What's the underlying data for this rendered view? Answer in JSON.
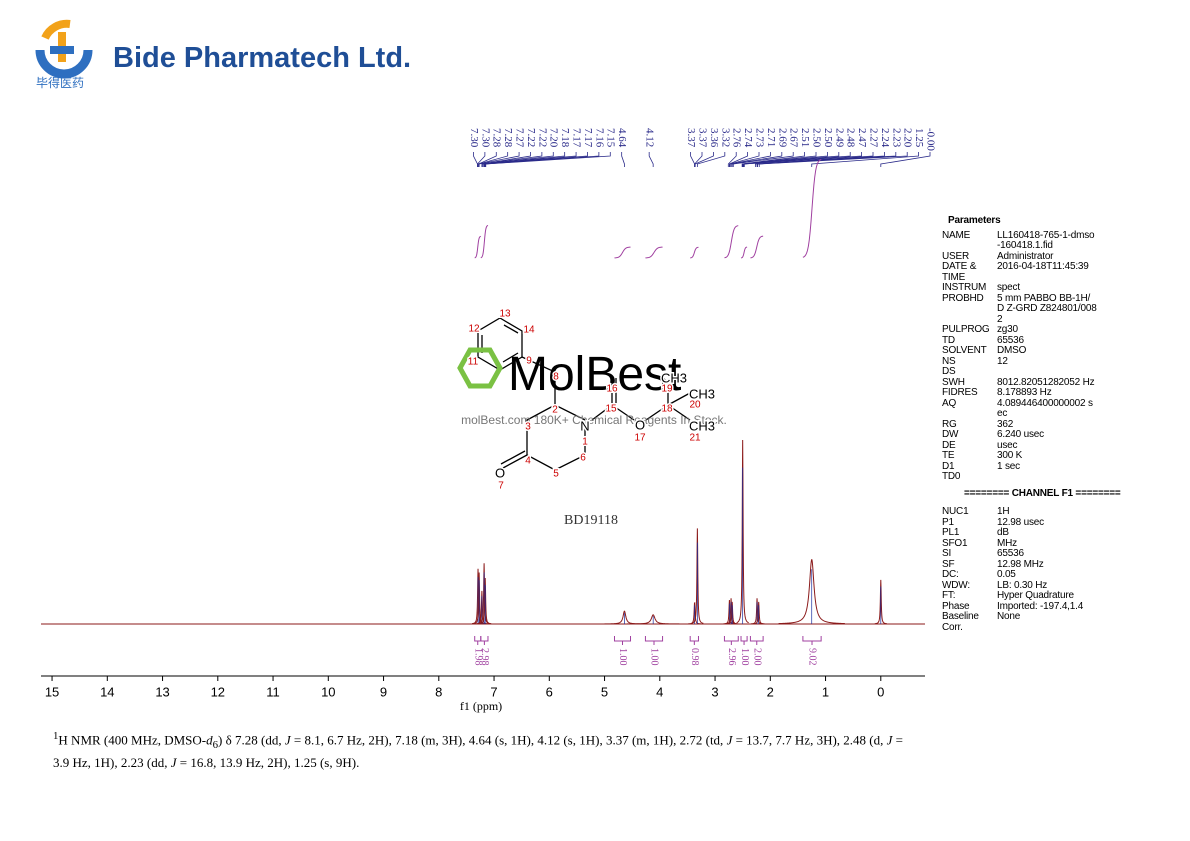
{
  "header": {
    "company": "Bide Pharmatech Ltd.",
    "chinese": "毕得医药"
  },
  "chart_data": {
    "type": "nmr",
    "xlabel": "f1 (ppm)",
    "xlim": [
      15.2,
      -0.8
    ],
    "xticks": [
      15,
      14,
      13,
      12,
      11,
      10,
      9,
      8,
      7,
      6,
      5,
      4,
      3,
      2,
      1,
      0
    ],
    "color": "#8b1a1a",
    "peak_labels": [
      {
        "value": 7.3,
        "label": "7.30"
      },
      {
        "value": 7.3,
        "label": "7.30"
      },
      {
        "value": 7.28,
        "label": "7.28"
      },
      {
        "value": 7.28,
        "label": "7.28"
      },
      {
        "value": 7.27,
        "label": "7.27"
      },
      {
        "value": 7.22,
        "label": "7.22"
      },
      {
        "value": 7.22,
        "label": "7.22"
      },
      {
        "value": 7.2,
        "label": "7.20"
      },
      {
        "value": 7.18,
        "label": "7.18"
      },
      {
        "value": 7.17,
        "label": "7.17"
      },
      {
        "value": 7.17,
        "label": "7.17"
      },
      {
        "value": 7.16,
        "label": "7.16"
      },
      {
        "value": 7.15,
        "label": "7.15"
      },
      {
        "value": 4.64,
        "label": "4.64"
      },
      {
        "value": 4.12,
        "label": "4.12"
      },
      {
        "value": 3.37,
        "label": "3.37"
      },
      {
        "value": 3.37,
        "label": "3.37"
      },
      {
        "value": 3.36,
        "label": "3.36"
      },
      {
        "value": 3.32,
        "label": "3.32"
      },
      {
        "value": 2.76,
        "label": "2.76"
      },
      {
        "value": 2.74,
        "label": "2.74"
      },
      {
        "value": 2.73,
        "label": "2.73"
      },
      {
        "value": 2.71,
        "label": "2.71"
      },
      {
        "value": 2.69,
        "label": "2.69"
      },
      {
        "value": 2.67,
        "label": "2.67"
      },
      {
        "value": 2.51,
        "label": "2.51"
      },
      {
        "value": 2.5,
        "label": "2.50"
      },
      {
        "value": 2.5,
        "label": "2.50"
      },
      {
        "value": 2.49,
        "label": "2.49"
      },
      {
        "value": 2.48,
        "label": "2.48"
      },
      {
        "value": 2.47,
        "label": "2.47"
      },
      {
        "value": 2.27,
        "label": "2.27"
      },
      {
        "value": 2.24,
        "label": "2.24"
      },
      {
        "value": 2.23,
        "label": "2.23"
      },
      {
        "value": 2.2,
        "label": "2.20"
      },
      {
        "value": 1.25,
        "label": "1.25"
      },
      {
        "value": 0,
        "label": "-0.00"
      }
    ],
    "peaks": {
      "ppm": [
        7.29,
        7.27,
        7.22,
        7.18,
        7.16,
        4.64,
        4.12,
        3.37,
        3.32,
        2.74,
        2.71,
        2.69,
        2.5,
        2.24,
        2.21,
        1.25,
        0
      ],
      "intensity": [
        30,
        28,
        18,
        33,
        25,
        7,
        5,
        12,
        52,
        13,
        14,
        12,
        100,
        14,
        12,
        35,
        24
      ],
      "width": [
        0.008,
        0.008,
        0.008,
        0.008,
        0.008,
        0.03,
        0.04,
        0.01,
        0.008,
        0.008,
        0.008,
        0.008,
        0.006,
        0.008,
        0.008,
        0.05,
        0.008
      ]
    },
    "integrals": [
      {
        "value": 1.98,
        "label": "1.98",
        "range": [
          7.35,
          7.24
        ]
      },
      {
        "value": 2.98,
        "label": "2.98",
        "range": [
          7.24,
          7.11
        ]
      },
      {
        "value": 1.0,
        "label": "1.00",
        "range": [
          4.82,
          4.53
        ]
      },
      {
        "value": 1.0,
        "label": "1.00",
        "range": [
          4.26,
          3.95
        ]
      },
      {
        "value": 0.98,
        "label": "0.98",
        "range": [
          3.45,
          3.3
        ]
      },
      {
        "value": 2.96,
        "label": "2.96",
        "range": [
          2.83,
          2.58
        ]
      },
      {
        "value": 1.0,
        "label": "1.00",
        "range": [
          2.53,
          2.42
        ]
      },
      {
        "value": 2.0,
        "label": "2.00",
        "range": [
          2.36,
          2.13
        ]
      },
      {
        "value": 9.02,
        "label": "9.02",
        "range": [
          1.41,
          1.08
        ]
      }
    ]
  },
  "structure": {
    "code": "BD19118",
    "atoms": [
      "13",
      "12",
      "14",
      "11",
      "9",
      "8",
      "2",
      "N",
      "1",
      "3",
      "16",
      "15",
      "O",
      "17",
      "19",
      "18",
      "CH3",
      "20",
      "CH3",
      "21",
      "CH3",
      "4",
      "5",
      "6",
      "O",
      "7"
    ]
  },
  "watermark": {
    "brand": "MolBest",
    "tagline": "molBest.com 180K+ Chemical Reagents In Stock."
  },
  "parameters": {
    "title": "Parameters",
    "rows": [
      [
        "NAME",
        "LL160418-765-1-dmso-160418.1.fid"
      ],
      [
        "USER",
        "Administrator"
      ],
      [
        "DATE & TIME",
        "2016-04-18T11:45:39"
      ],
      [
        "INSTRUM",
        "spect"
      ],
      [
        "PROBHD",
        "5 mm PABBO BB-1H/D Z-GRD Z824801/0082"
      ],
      [
        "PULPROG",
        "zg30"
      ],
      [
        "TD",
        "65536"
      ],
      [
        "SOLVENT",
        "DMSO"
      ],
      [
        "NS",
        "12"
      ],
      [
        "DS"
      ],
      [
        "SWH",
        "8012.82051282052 Hz"
      ],
      [
        "FIDRES",
        "8.178893 Hz"
      ],
      [
        "AQ",
        "4.089446400000002 sec"
      ],
      [
        "RG",
        "362"
      ],
      [
        "DW",
        "6.240 usec"
      ],
      [
        "DE",
        "usec"
      ],
      [
        "TE",
        "300 K"
      ],
      [
        "D1",
        "1 sec"
      ],
      [
        "TD0"
      ]
    ],
    "channel": "======== CHANNEL F1 ========",
    "rows2": [
      [
        "NUC1",
        "1H"
      ],
      [
        "P1",
        "12.98 usec"
      ],
      [
        "PL1",
        "dB"
      ],
      [
        "SFO1",
        "MHz"
      ],
      [
        "SI",
        "65536"
      ],
      [
        "SF",
        "12.98 MHz"
      ],
      [
        "DC:",
        "0.05"
      ],
      [
        "WDW:",
        "LB: 0.30 Hz"
      ],
      [
        "FT:",
        "Hyper Quadrature"
      ],
      [
        "Phase",
        "Imported: -197.4,1.4"
      ],
      [
        "Baseline",
        "None"
      ],
      [
        "Corr."
      ]
    ]
  },
  "caption": [
    "1",
    "H NMR (400 MHz, DMSO-",
    "d",
    "6",
    ") δ 7.28 (dd, ",
    "J",
    " = 8.1, 6.7 Hz, 2H), 7.18 (m, 3H), 4.64 (s, 1H), 4.12 (s, 1H), 3.37 (m, 1H), 2.72 (td, ",
    "J",
    " = 13.7, 7.7 Hz, 3H), 2.48 (d, ",
    "J",
    " = 3.9 Hz, 1H), 2.23 (dd, ",
    "J",
    " = 16.8, 13.9 Hz, 2H), 1.25 (s, 9H)."
  ]
}
